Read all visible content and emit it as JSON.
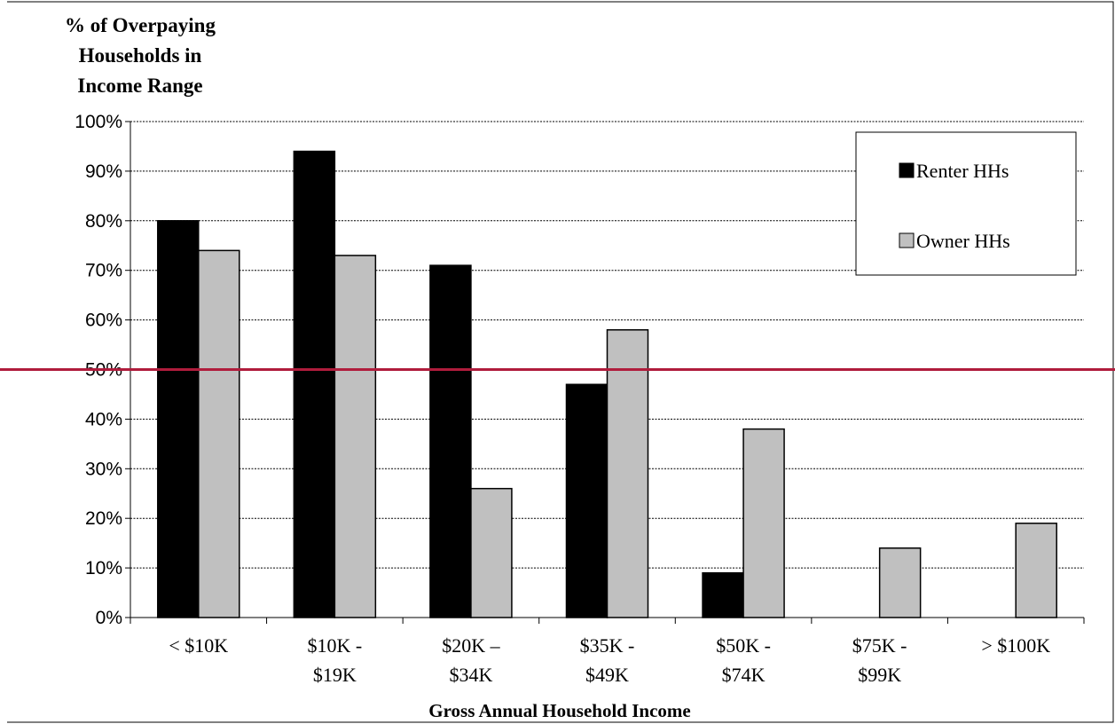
{
  "chart_data": {
    "type": "bar",
    "title": "",
    "ylabel_lines": [
      "% of Overpaying",
      "Households in",
      "Income Range"
    ],
    "xlabel": "Gross Annual Household Income",
    "categories": [
      [
        "< $10K"
      ],
      [
        "$10K -",
        "$19K"
      ],
      [
        "$20K –",
        "$34K"
      ],
      [
        "$35K -",
        "$49K"
      ],
      [
        "$50K -",
        "$74K"
      ],
      [
        "$75K -",
        "$99K"
      ],
      [
        "> $100K"
      ]
    ],
    "series": [
      {
        "name": "Renter HHs",
        "color": "#000000",
        "values": [
          80,
          94,
          71,
          47,
          9,
          0,
          0
        ]
      },
      {
        "name": "Owner HHs",
        "color": "#c0c0c0",
        "values": [
          74,
          73,
          26,
          58,
          38,
          14,
          19
        ]
      }
    ],
    "ylim": [
      0,
      100
    ],
    "ytick_values": [
      0,
      10,
      20,
      30,
      40,
      50,
      60,
      70,
      80,
      90,
      100
    ],
    "ytick_labels": [
      "0%",
      "10%",
      "20%",
      "30%",
      "40%",
      "50%",
      "60%",
      "70%",
      "80%",
      "90%",
      "100%"
    ],
    "grid": true,
    "legend_position": "top-right",
    "reference_line": {
      "value": 50,
      "color": "#b01c3c"
    }
  }
}
